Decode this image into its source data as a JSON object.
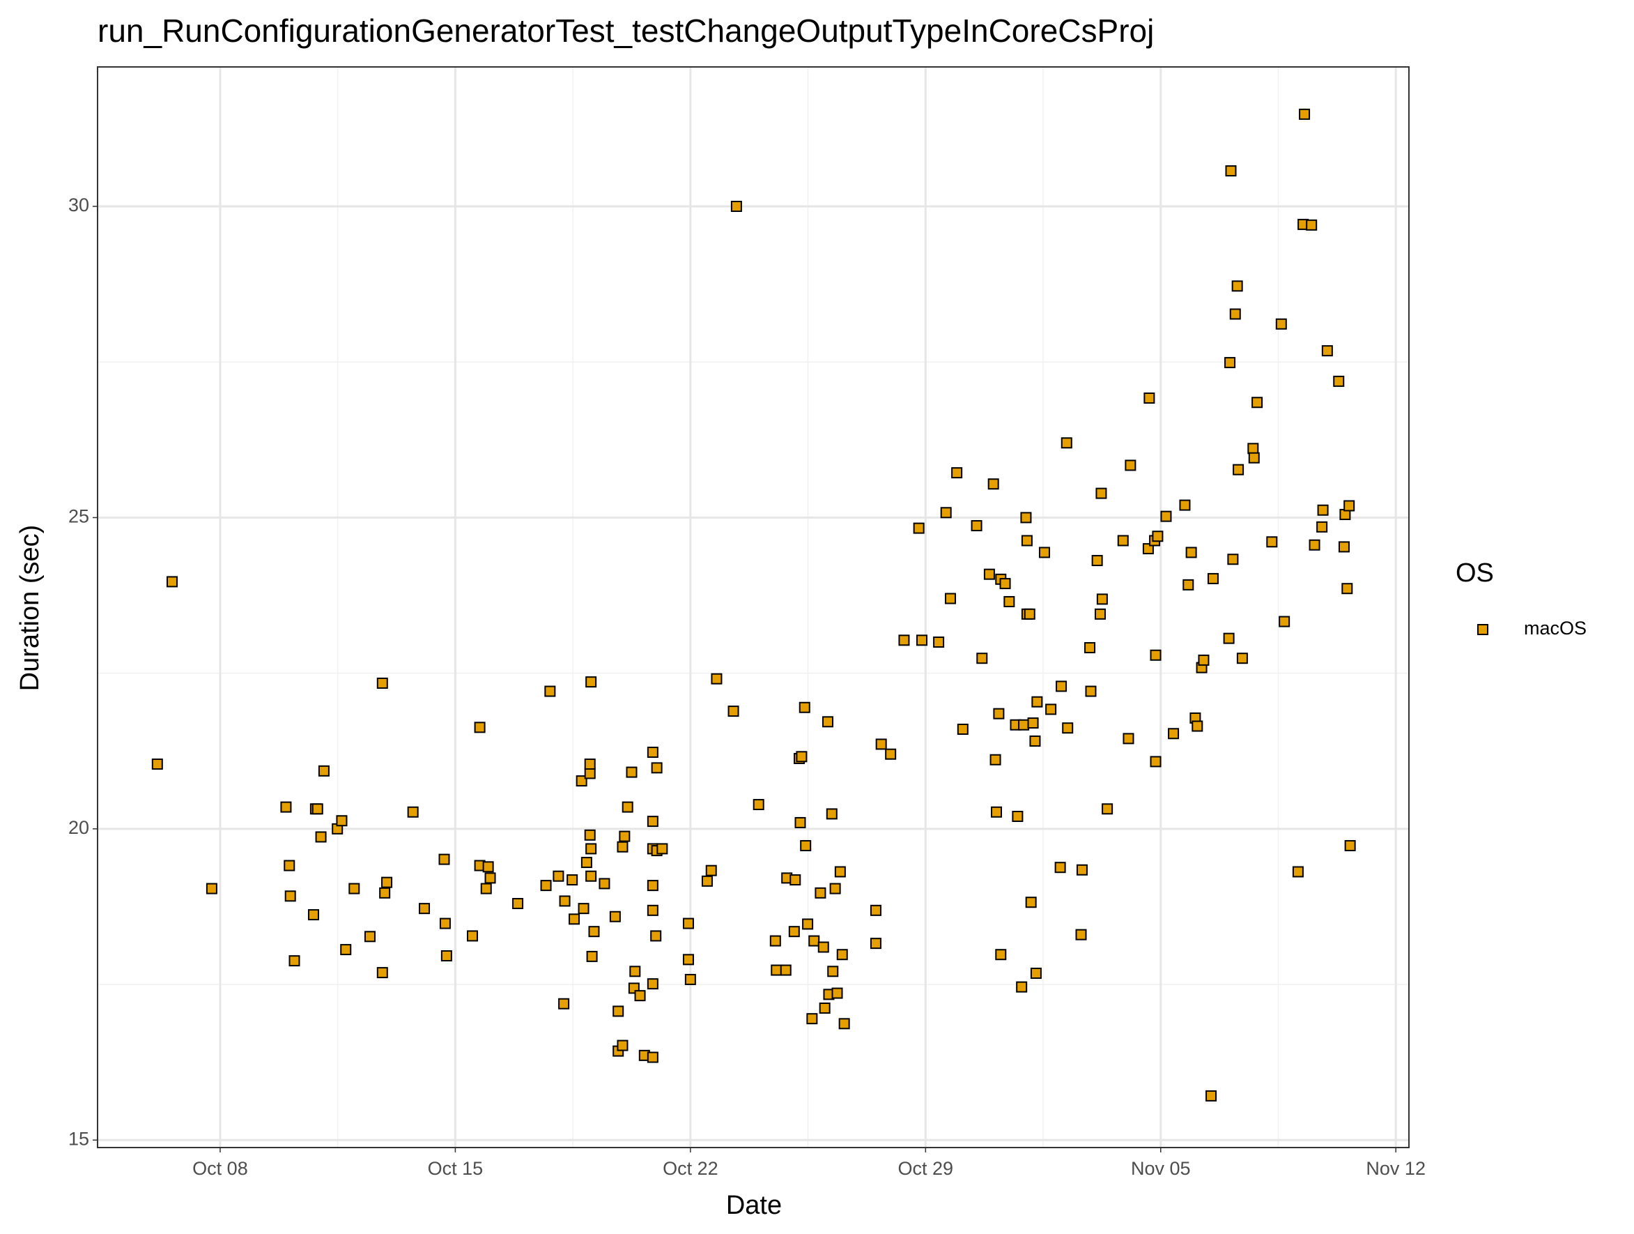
{
  "chart_data": {
    "type": "scatter",
    "title": "run_RunConfigurationGeneratorTest_testChangeOutputTypeInCoreCsProj",
    "x_label": "Date",
    "y_label": "Duration (sec)",
    "legend_title": "OS",
    "legend_position": "right",
    "grid": true,
    "xlim": [
      4.35,
      43.39
    ],
    "ylim": [
      14.88,
      32.24
    ],
    "xticks": [
      {
        "value": 8,
        "label": "Oct 08"
      },
      {
        "value": 15,
        "label": "Oct 15"
      },
      {
        "value": 22,
        "label": "Oct 22"
      },
      {
        "value": 29,
        "label": "Oct 29"
      },
      {
        "value": 36,
        "label": "Nov 05"
      },
      {
        "value": 43,
        "label": "Nov 12"
      }
    ],
    "yticks": [
      15,
      20,
      25,
      30
    ],
    "x": [
      6.13,
      6.57,
      7.75,
      9.96,
      10.06,
      10.09,
      10.21,
      10.78,
      10.84,
      10.9,
      11.0,
      11.09,
      11.49,
      11.62,
      11.74,
      11.99,
      12.46,
      12.83,
      12.83,
      12.9,
      12.96,
      13.74,
      14.08,
      14.67,
      14.7,
      14.74,
      15.51,
      15.73,
      15.73,
      15.92,
      15.98,
      16.04,
      16.86,
      17.7,
      17.82,
      18.07,
      18.23,
      18.26,
      18.48,
      18.54,
      18.76,
      18.82,
      18.91,
      19.01,
      19.01,
      19.04,
      19.01,
      19.04,
      19.04,
      19.07,
      19.13,
      19.44,
      19.76,
      19.85,
      19.85,
      19.98,
      19.98,
      20.04,
      20.13,
      20.25,
      20.35,
      20.32,
      20.5,
      20.63,
      20.88,
      20.88,
      20.88,
      20.88,
      20.88,
      20.88,
      20.88,
      21.0,
      20.97,
      21.0,
      21.16,
      21.94,
      21.94,
      22.0,
      22.5,
      22.62,
      22.78,
      23.28,
      23.37,
      24.03,
      24.53,
      24.56,
      24.84,
      24.87,
      25.12,
      25.09,
      25.24,
      25.31,
      25.27,
      25.4,
      25.43,
      25.49,
      25.62,
      25.68,
      25.87,
      25.96,
      26.0,
      26.09,
      26.12,
      26.21,
      26.24,
      26.31,
      26.37,
      26.46,
      26.52,
      26.58,
      27.52,
      27.52,
      27.68,
      27.96,
      28.36,
      28.8,
      28.89,
      29.39,
      29.61,
      29.74,
      29.93,
      30.11,
      30.52,
      30.68,
      30.9,
      31.02,
      31.08,
      31.11,
      31.18,
      31.24,
      31.24,
      31.37,
      31.49,
      31.68,
      31.74,
      31.86,
      31.92,
      31.99,
      32.02,
      32.02,
      32.1,
      32.14,
      32.2,
      32.26,
      32.29,
      32.32,
      32.54,
      32.73,
      33.01,
      33.04,
      33.2,
      33.23,
      33.63,
      33.66,
      33.89,
      33.92,
      34.11,
      34.23,
      34.2,
      34.26,
      34.41,
      34.88,
      35.04,
      35.1,
      35.66,
      35.63,
      35.82,
      35.85,
      35.85,
      35.91,
      36.16,
      36.38,
      36.72,
      36.82,
      36.91,
      37.03,
      37.09,
      37.22,
      37.28,
      37.5,
      37.56,
      38.03,
      38.06,
      38.09,
      38.15,
      38.22,
      38.28,
      38.31,
      38.43,
      38.75,
      38.78,
      38.87,
      39.31,
      39.59,
      39.68,
      40.09,
      40.28,
      40.24,
      40.49,
      40.58,
      40.8,
      40.83,
      40.96,
      41.3,
      41.46,
      41.49,
      41.55,
      41.61,
      41.64
    ],
    "series": [
      {
        "name": "macOS",
        "color": "#E69F00",
        "values": [
          21.04,
          23.97,
          19.04,
          20.35,
          19.41,
          18.92,
          17.88,
          18.62,
          20.32,
          20.32,
          19.87,
          20.93,
          20.0,
          20.13,
          18.06,
          19.04,
          18.27,
          22.34,
          17.69,
          18.97,
          19.14,
          20.27,
          18.72,
          19.51,
          18.48,
          17.96,
          18.28,
          21.63,
          19.41,
          19.04,
          19.39,
          19.21,
          18.8,
          19.09,
          22.21,
          19.24,
          17.19,
          18.84,
          19.18,
          18.55,
          20.77,
          18.72,
          19.46,
          20.89,
          21.04,
          22.36,
          19.9,
          19.68,
          19.24,
          17.95,
          18.35,
          19.12,
          18.59,
          17.07,
          16.43,
          16.52,
          19.71,
          19.88,
          20.35,
          20.91,
          17.71,
          17.44,
          17.32,
          16.36,
          16.33,
          17.51,
          21.23,
          20.12,
          19.68,
          19.09,
          18.69,
          20.98,
          18.28,
          19.65,
          19.68,
          17.9,
          18.48,
          17.58,
          19.16,
          19.33,
          22.41,
          21.89,
          30.0,
          20.39,
          18.2,
          17.73,
          17.73,
          19.21,
          19.18,
          18.35,
          21.13,
          21.16,
          20.1,
          21.95,
          19.73,
          18.47,
          16.95,
          18.2,
          18.97,
          18.1,
          17.12,
          21.72,
          17.34,
          20.24,
          17.71,
          19.04,
          17.36,
          19.31,
          17.98,
          16.87,
          18.69,
          18.16,
          21.36,
          21.2,
          23.03,
          24.83,
          23.03,
          23.0,
          25.08,
          23.7,
          25.72,
          21.6,
          24.87,
          22.74,
          24.09,
          25.54,
          21.11,
          20.27,
          21.85,
          17.98,
          24.01,
          23.94,
          23.65,
          21.67,
          20.2,
          17.46,
          21.67,
          25.0,
          24.63,
          23.45,
          23.45,
          18.82,
          21.7,
          21.41,
          17.68,
          22.04,
          24.44,
          21.92,
          19.38,
          22.29,
          26.2,
          21.62,
          18.3,
          19.34,
          22.91,
          22.21,
          24.31,
          25.39,
          23.45,
          23.69,
          20.32,
          24.63,
          21.45,
          25.84,
          26.92,
          24.5,
          24.63,
          22.79,
          21.08,
          24.7,
          25.02,
          21.53,
          25.2,
          23.92,
          24.44,
          21.78,
          21.65,
          22.59,
          22.71,
          15.71,
          24.02,
          23.06,
          27.49,
          30.57,
          24.33,
          28.27,
          28.72,
          25.77,
          22.74,
          26.11,
          25.96,
          26.85,
          24.61,
          28.11,
          23.33,
          19.31,
          31.48,
          29.71,
          29.7,
          24.56,
          24.85,
          25.12,
          27.68,
          27.19,
          24.53,
          25.05,
          23.86,
          25.19,
          19.73
        ]
      }
    ]
  }
}
